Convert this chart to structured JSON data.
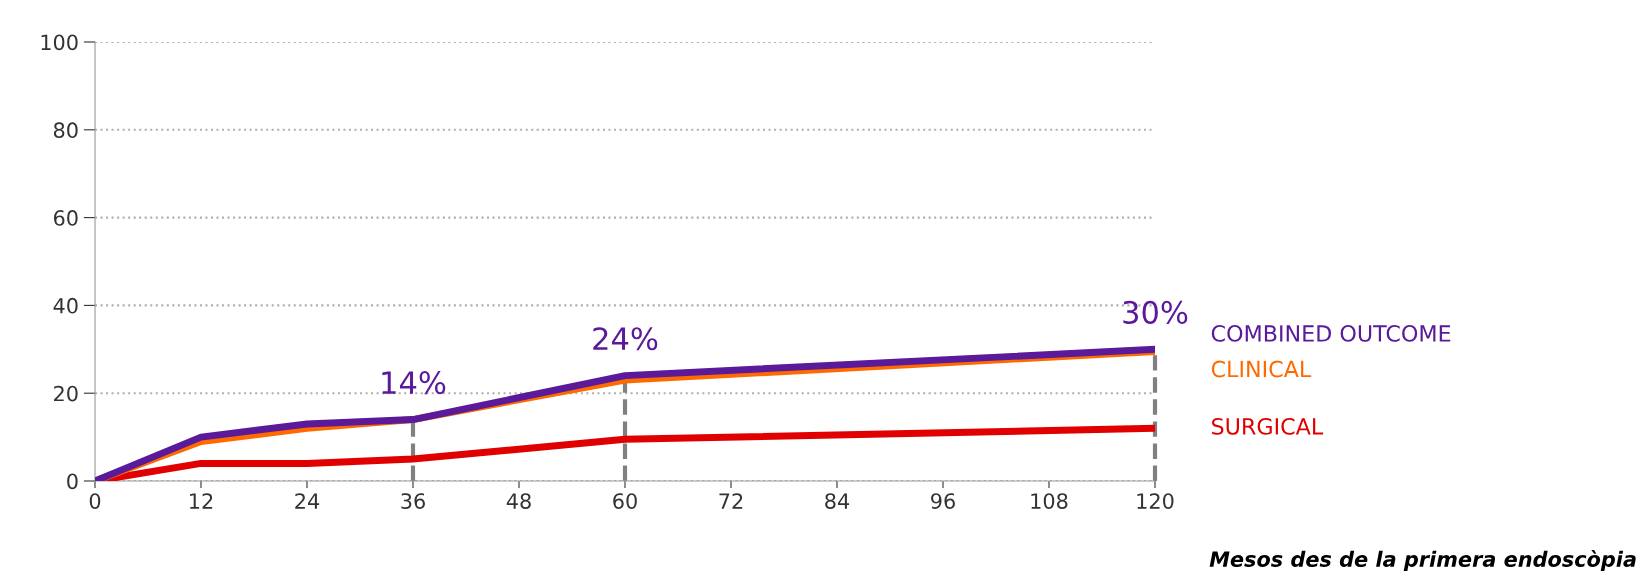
{
  "chart_data": {
    "type": "line",
    "xlabel": "Mesos des de la primera endoscòpia",
    "x": [
      0,
      12,
      24,
      36,
      60,
      120
    ],
    "series": [
      {
        "name": "SURGICAL",
        "color": "#e00000",
        "values": [
          0,
          4,
          4,
          5,
          9.5,
          12
        ]
      },
      {
        "name": "CLINICAL",
        "color": "#ff6a00",
        "values": [
          0,
          9,
          12,
          14,
          23,
          29.5
        ]
      },
      {
        "name": "COMBINED OUTCOME",
        "color": "#5a1a9a",
        "values": [
          0,
          10,
          13,
          14,
          24,
          30
        ]
      }
    ],
    "xlim": [
      0,
      120
    ],
    "xticks": [
      0,
      12,
      24,
      36,
      48,
      60,
      72,
      84,
      96,
      108,
      120
    ],
    "ylim": [
      0,
      100
    ],
    "yticks": [
      0,
      20,
      40,
      60,
      80,
      100
    ],
    "grid": "y",
    "legend": false,
    "marker": "none",
    "line_style": "solid",
    "ref_lines": [
      {
        "axis": "x",
        "value": 36,
        "color": "#808080",
        "line_style": "dashed"
      },
      {
        "axis": "x",
        "value": 60,
        "color": "#808080",
        "line_style": "dashed"
      },
      {
        "axis": "x",
        "value": 120,
        "color": "#808080",
        "line_style": "dashed"
      }
    ],
    "annotations": [
      {
        "text": "14%",
        "x": 36,
        "y": 14
      },
      {
        "text": "24%",
        "x": 60,
        "y": 24
      },
      {
        "text": "30%",
        "x": 120,
        "y": 30
      }
    ]
  }
}
